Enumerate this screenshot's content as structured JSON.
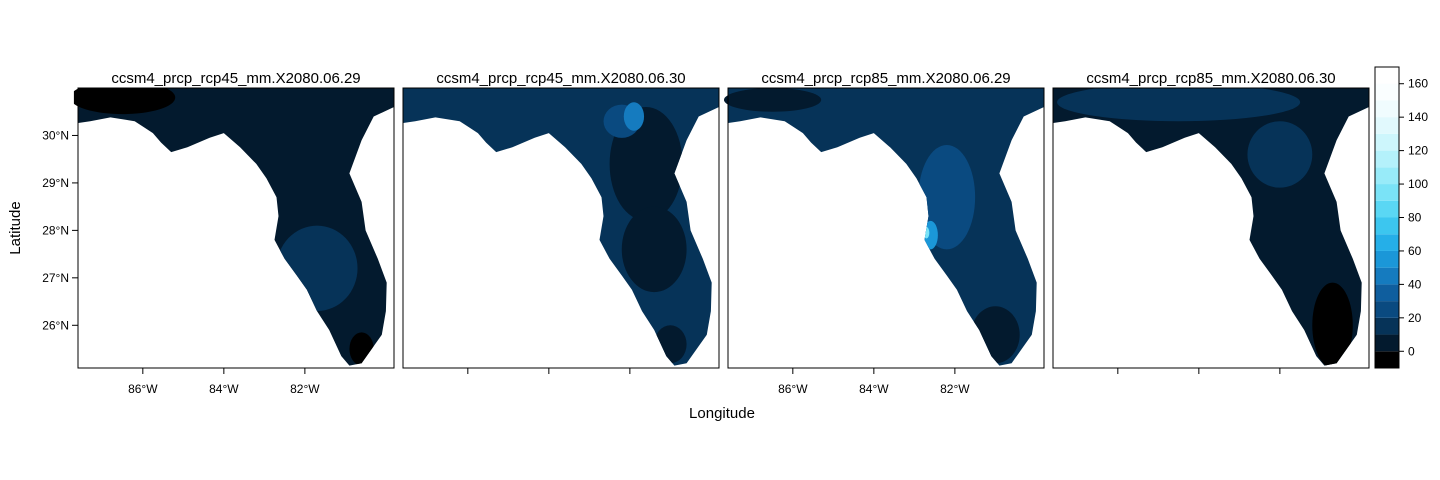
{
  "chart_data": {
    "type": "heatmap",
    "panels": [
      {
        "title": "ccsm4_prcp_rcp45_mm.X2080.06.29"
      },
      {
        "title": "ccsm4_prcp_rcp45_mm.X2080.06.30"
      },
      {
        "title": "ccsm4_prcp_rcp85_mm.X2080.06.29"
      },
      {
        "title": "ccsm4_prcp_rcp85_mm.X2080.06.30"
      }
    ],
    "xlabel": "Longitude",
    "ylabel": "Latitude",
    "x_ticks": [
      "86°W",
      "84°W",
      "82°W"
    ],
    "x_tick_values": [
      -86,
      -84,
      -82
    ],
    "y_ticks": [
      "26°N",
      "27°N",
      "28°N",
      "29°N",
      "30°N"
    ],
    "y_tick_values": [
      26,
      27,
      28,
      29,
      30
    ],
    "xlim": [
      -87.6,
      -79.8
    ],
    "ylim": [
      25.1,
      31.0
    ],
    "colorbar": {
      "ticks": [
        "0",
        "20",
        "40",
        "60",
        "80",
        "100",
        "120",
        "140",
        "160"
      ],
      "tick_values": [
        0,
        20,
        40,
        60,
        80,
        100,
        120,
        140,
        160
      ],
      "range": [
        -10,
        170
      ],
      "step": 10,
      "colors": [
        "#000000",
        "#031a2e",
        "#063358",
        "#0a4a80",
        "#0f5e9e",
        "#157bbf",
        "#1b97d8",
        "#25afe8",
        "#3cc6ef",
        "#5ad7f4",
        "#7ae3f7",
        "#98ebf9",
        "#b4f1fb",
        "#cdf6fc",
        "#e1f9fd",
        "#f0fcfe",
        "#fafeff",
        "#ffffff"
      ]
    }
  }
}
